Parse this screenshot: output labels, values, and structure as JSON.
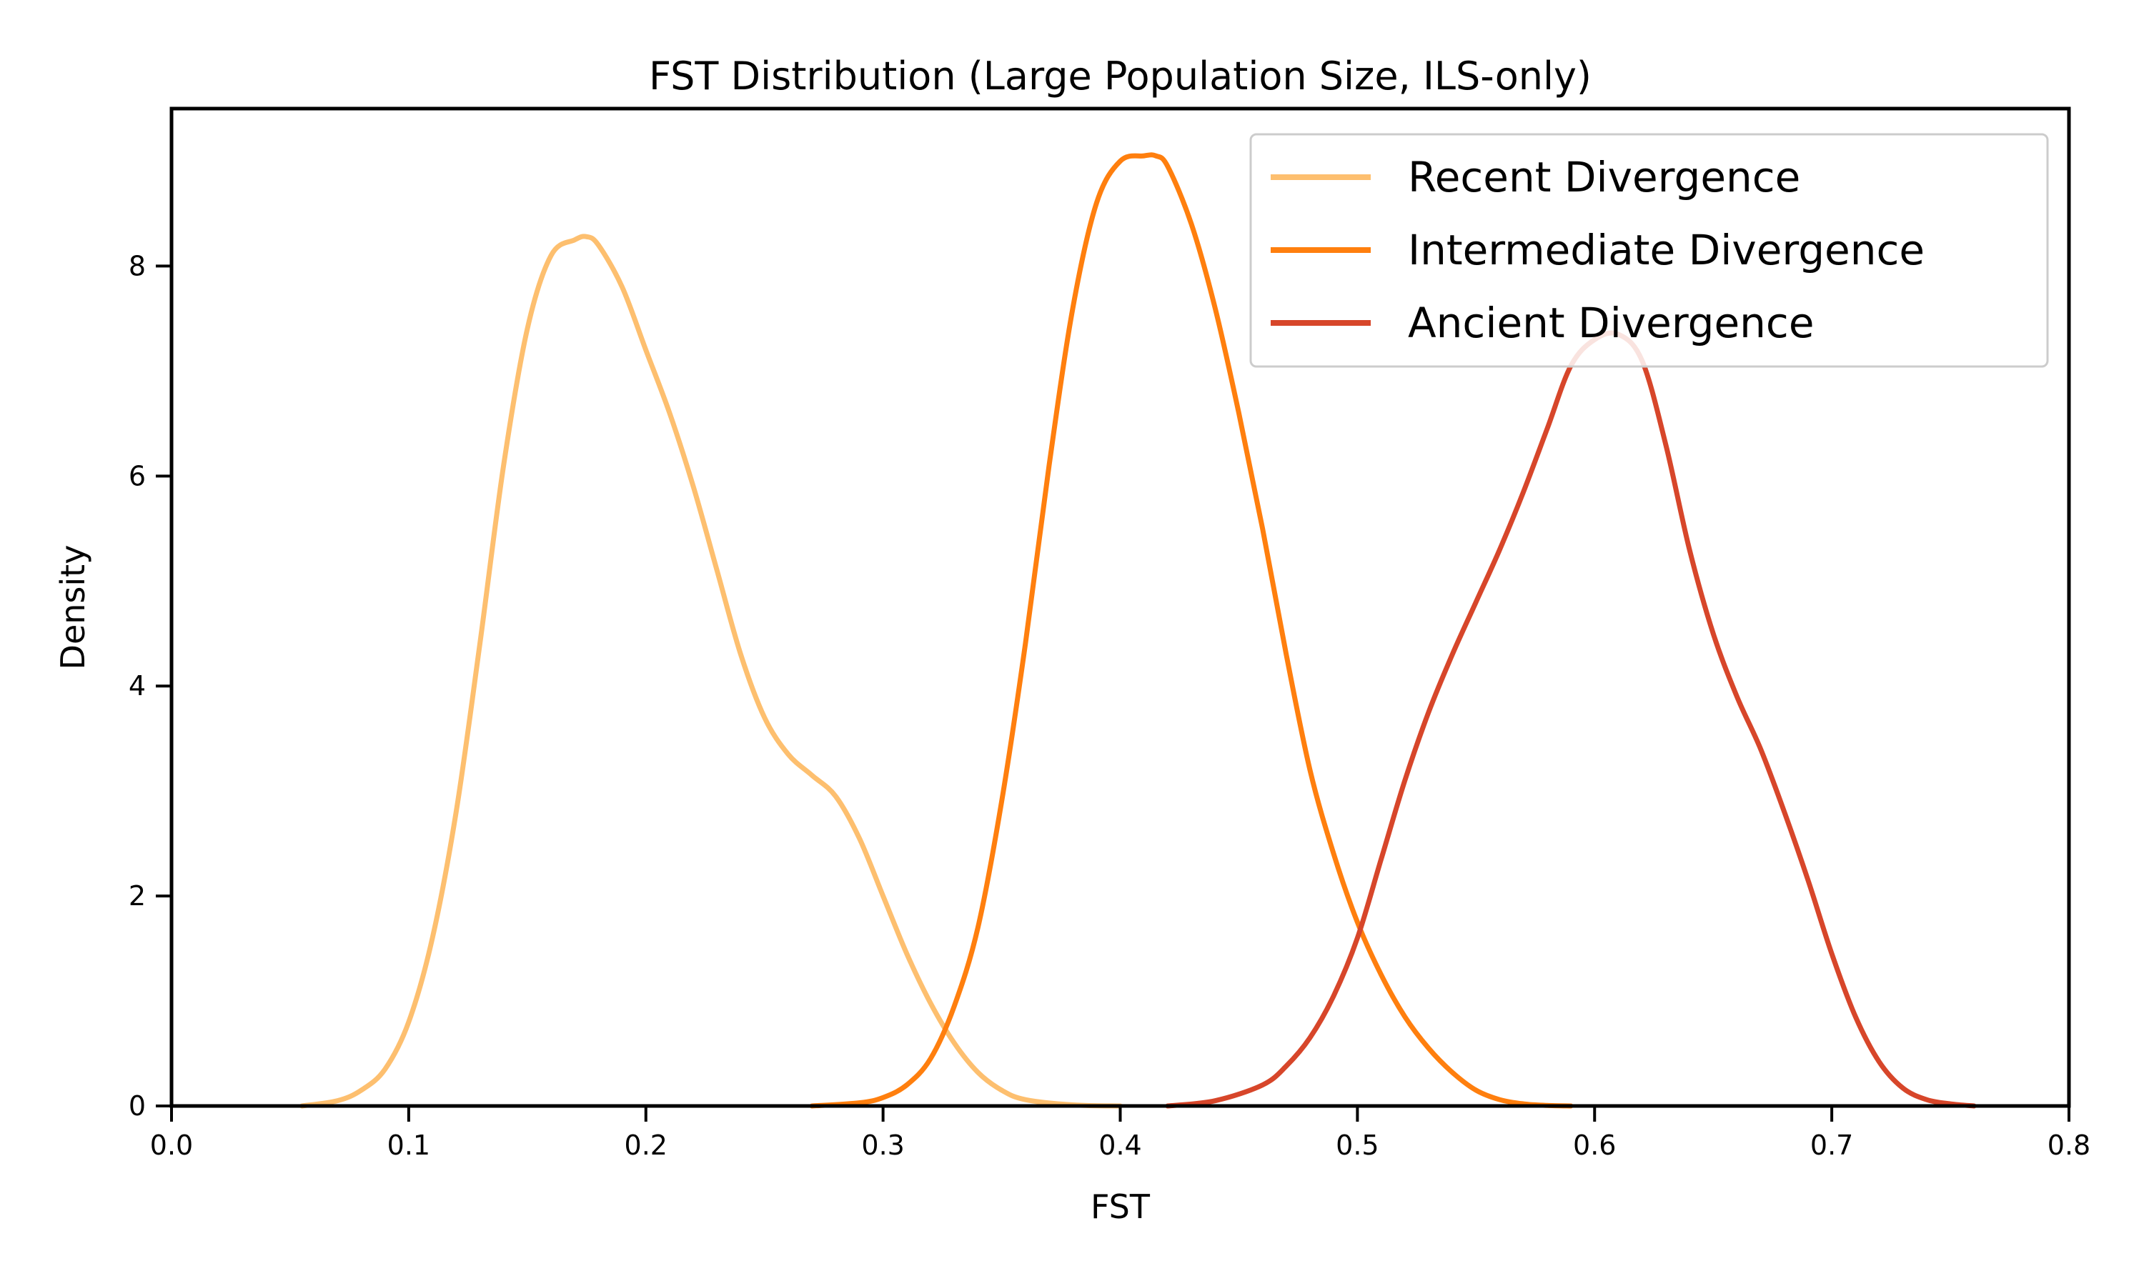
{
  "chart_data": {
    "type": "line",
    "title": "FST Distribution (Large Population Size, ILS-only)",
    "xlabel": "FST",
    "ylabel": "Density",
    "xlim": [
      0.0,
      0.8
    ],
    "ylim": [
      0,
      9.5
    ],
    "xticks": [
      0.0,
      0.1,
      0.2,
      0.3,
      0.4,
      0.5,
      0.6,
      0.7,
      0.8
    ],
    "xtick_labels": [
      "0.0",
      "0.1",
      "0.2",
      "0.3",
      "0.4",
      "0.5",
      "0.6",
      "0.7",
      "0.8"
    ],
    "yticks": [
      0,
      2,
      4,
      6,
      8
    ],
    "ytick_labels": [
      "0",
      "2",
      "4",
      "6",
      "8"
    ],
    "grid": false,
    "legend_position": "top-right",
    "series": [
      {
        "name": "Recent Divergence",
        "color": "#fdbf6f",
        "x": [
          0.055,
          0.07,
          0.08,
          0.09,
          0.1,
          0.11,
          0.12,
          0.13,
          0.14,
          0.15,
          0.16,
          0.17,
          0.175,
          0.18,
          0.19,
          0.2,
          0.21,
          0.22,
          0.23,
          0.24,
          0.25,
          0.26,
          0.27,
          0.28,
          0.29,
          0.3,
          0.31,
          0.32,
          0.33,
          0.34,
          0.35,
          0.36,
          0.38,
          0.4
        ],
        "y": [
          0.0,
          0.05,
          0.15,
          0.35,
          0.8,
          1.6,
          2.8,
          4.4,
          6.1,
          7.4,
          8.1,
          8.25,
          8.28,
          8.2,
          7.8,
          7.2,
          6.6,
          5.9,
          5.1,
          4.3,
          3.7,
          3.35,
          3.15,
          2.95,
          2.55,
          2.0,
          1.45,
          0.98,
          0.6,
          0.32,
          0.15,
          0.06,
          0.01,
          0.0
        ]
      },
      {
        "name": "Intermediate Divergence",
        "color": "#ff7f0e",
        "x": [
          0.27,
          0.29,
          0.3,
          0.31,
          0.32,
          0.33,
          0.34,
          0.35,
          0.36,
          0.37,
          0.38,
          0.39,
          0.4,
          0.41,
          0.415,
          0.42,
          0.43,
          0.44,
          0.45,
          0.46,
          0.47,
          0.48,
          0.49,
          0.5,
          0.51,
          0.52,
          0.53,
          0.54,
          0.55,
          0.56,
          0.57,
          0.58,
          0.59
        ],
        "y": [
          0.0,
          0.03,
          0.08,
          0.2,
          0.45,
          0.95,
          1.7,
          2.9,
          4.4,
          6.1,
          7.6,
          8.6,
          9.0,
          9.05,
          9.05,
          8.95,
          8.4,
          7.6,
          6.6,
          5.5,
          4.3,
          3.2,
          2.4,
          1.75,
          1.25,
          0.85,
          0.55,
          0.32,
          0.15,
          0.06,
          0.02,
          0.005,
          0.0
        ]
      },
      {
        "name": "Ancient Divergence",
        "color": "#d7462a",
        "x": [
          0.42,
          0.44,
          0.46,
          0.47,
          0.48,
          0.49,
          0.5,
          0.51,
          0.52,
          0.53,
          0.54,
          0.55,
          0.56,
          0.57,
          0.58,
          0.59,
          0.6,
          0.61,
          0.62,
          0.63,
          0.64,
          0.65,
          0.66,
          0.67,
          0.68,
          0.69,
          0.7,
          0.71,
          0.72,
          0.73,
          0.74,
          0.75,
          0.76
        ],
        "y": [
          0.0,
          0.05,
          0.2,
          0.38,
          0.65,
          1.05,
          1.6,
          2.35,
          3.1,
          3.75,
          4.3,
          4.8,
          5.3,
          5.85,
          6.45,
          7.05,
          7.3,
          7.35,
          7.1,
          6.3,
          5.3,
          4.5,
          3.9,
          3.4,
          2.8,
          2.15,
          1.45,
          0.85,
          0.42,
          0.17,
          0.06,
          0.02,
          0.0
        ]
      }
    ]
  }
}
